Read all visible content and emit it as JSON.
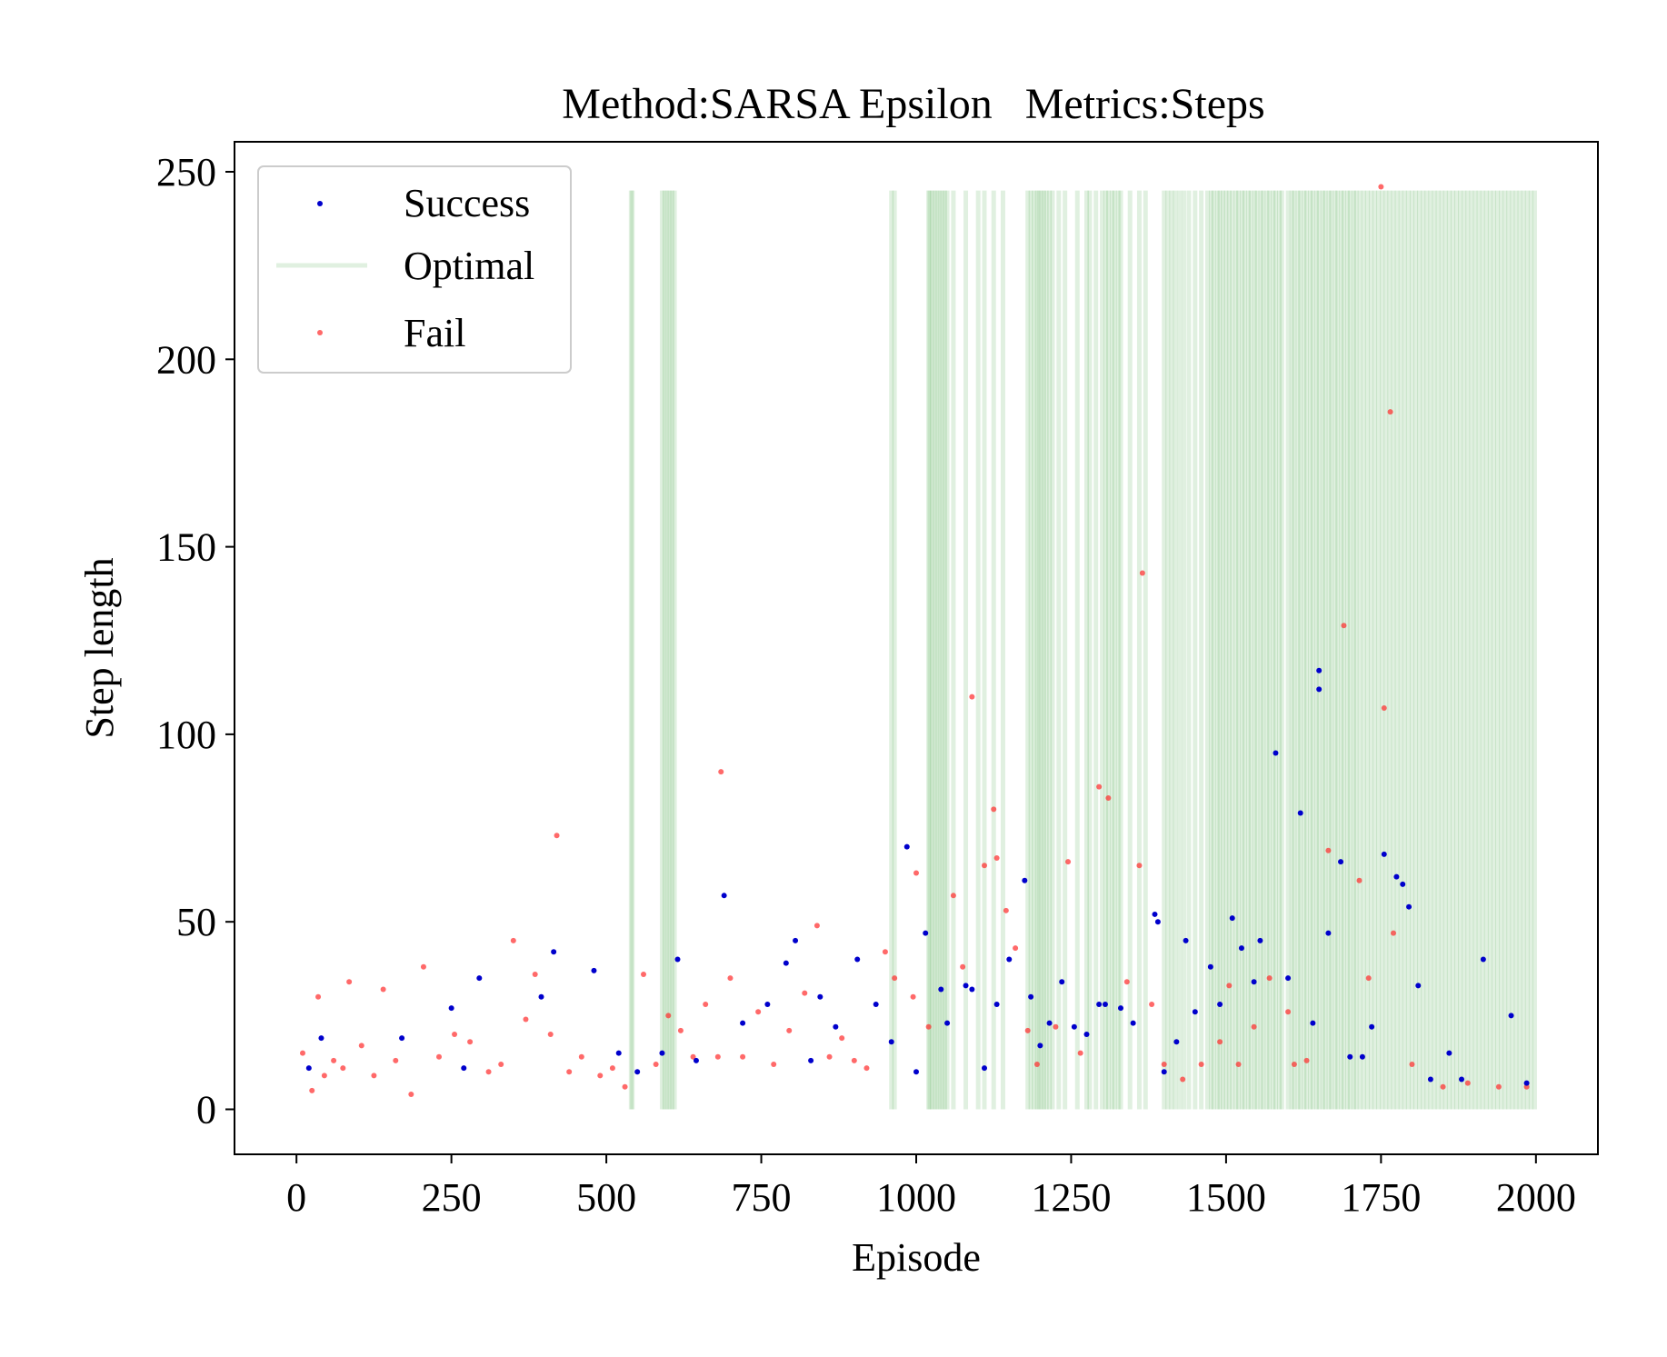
{
  "chart_data": {
    "type": "scatter",
    "title": "Method:SARSA Epsilon   Metrics:Steps",
    "xlabel": "Episode",
    "ylabel": "Step length",
    "xlim": [
      -100,
      2100
    ],
    "ylim": [
      -12,
      258
    ],
    "x_ticks": [
      0,
      250,
      500,
      750,
      1000,
      1250,
      1500,
      1750,
      2000
    ],
    "y_ticks": [
      0,
      50,
      100,
      150,
      200,
      250
    ],
    "x_tick_labels": [
      "0",
      "250",
      "500",
      "750",
      "1000",
      "1250",
      "1500",
      "1750",
      "2000"
    ],
    "y_tick_labels": [
      "0",
      "50",
      "100",
      "150",
      "200",
      "250"
    ],
    "grid": false,
    "legend_position": "top-left",
    "legend": [
      {
        "label": "Success",
        "marker": "dot",
        "color": "#0000cc"
      },
      {
        "label": "Optimal",
        "marker": "line",
        "color": "#2e9a2e"
      },
      {
        "label": "Fail",
        "marker": "dot",
        "color": "#ff2a2a"
      }
    ],
    "colors": {
      "success": "#0000cc",
      "fail": "#ff2a2a",
      "optimal": "#2e9a2e"
    },
    "optimal_line_top": 245,
    "series": [
      {
        "name": "Success",
        "points": [
          [
            20,
            11
          ],
          [
            40,
            19
          ],
          [
            170,
            19
          ],
          [
            250,
            27
          ],
          [
            270,
            11
          ],
          [
            295,
            35
          ],
          [
            395,
            30
          ],
          [
            415,
            42
          ],
          [
            480,
            37
          ],
          [
            520,
            15
          ],
          [
            550,
            10
          ],
          [
            590,
            15
          ],
          [
            615,
            40
          ],
          [
            645,
            13
          ],
          [
            690,
            57
          ],
          [
            720,
            23
          ],
          [
            760,
            28
          ],
          [
            790,
            39
          ],
          [
            805,
            45
          ],
          [
            830,
            13
          ],
          [
            845,
            30
          ],
          [
            870,
            22
          ],
          [
            905,
            40
          ],
          [
            935,
            28
          ],
          [
            960,
            18
          ],
          [
            985,
            70
          ],
          [
            1000,
            10
          ],
          [
            1015,
            47
          ],
          [
            1040,
            32
          ],
          [
            1050,
            23
          ],
          [
            1080,
            33
          ],
          [
            1090,
            32
          ],
          [
            1110,
            11
          ],
          [
            1130,
            28
          ],
          [
            1150,
            40
          ],
          [
            1175,
            61
          ],
          [
            1185,
            30
          ],
          [
            1200,
            17
          ],
          [
            1215,
            23
          ],
          [
            1235,
            34
          ],
          [
            1255,
            22
          ],
          [
            1275,
            20
          ],
          [
            1295,
            28
          ],
          [
            1305,
            28
          ],
          [
            1330,
            27
          ],
          [
            1350,
            23
          ],
          [
            1385,
            52
          ],
          [
            1390,
            50
          ],
          [
            1400,
            10
          ],
          [
            1420,
            18
          ],
          [
            1435,
            45
          ],
          [
            1450,
            26
          ],
          [
            1475,
            38
          ],
          [
            1490,
            28
          ],
          [
            1510,
            51
          ],
          [
            1525,
            43
          ],
          [
            1545,
            34
          ],
          [
            1555,
            45
          ],
          [
            1580,
            95
          ],
          [
            1600,
            35
          ],
          [
            1620,
            79
          ],
          [
            1640,
            23
          ],
          [
            1650,
            117
          ],
          [
            1650,
            112
          ],
          [
            1665,
            47
          ],
          [
            1685,
            66
          ],
          [
            1700,
            14
          ],
          [
            1720,
            14
          ],
          [
            1735,
            22
          ],
          [
            1755,
            68
          ],
          [
            1775,
            62
          ],
          [
            1785,
            60
          ],
          [
            1795,
            54
          ],
          [
            1810,
            33
          ],
          [
            1830,
            8
          ],
          [
            1860,
            15
          ],
          [
            1880,
            8
          ],
          [
            1915,
            40
          ],
          [
            1960,
            25
          ],
          [
            1985,
            7
          ]
        ]
      },
      {
        "name": "Fail",
        "points": [
          [
            10,
            15
          ],
          [
            25,
            5
          ],
          [
            35,
            30
          ],
          [
            45,
            9
          ],
          [
            60,
            13
          ],
          [
            75,
            11
          ],
          [
            85,
            34
          ],
          [
            105,
            17
          ],
          [
            125,
            9
          ],
          [
            140,
            32
          ],
          [
            160,
            13
          ],
          [
            185,
            4
          ],
          [
            205,
            38
          ],
          [
            230,
            14
          ],
          [
            255,
            20
          ],
          [
            280,
            18
          ],
          [
            310,
            10
          ],
          [
            330,
            12
          ],
          [
            350,
            45
          ],
          [
            370,
            24
          ],
          [
            385,
            36
          ],
          [
            410,
            20
          ],
          [
            420,
            73
          ],
          [
            440,
            10
          ],
          [
            460,
            14
          ],
          [
            490,
            9
          ],
          [
            510,
            11
          ],
          [
            530,
            6
          ],
          [
            560,
            36
          ],
          [
            580,
            12
          ],
          [
            600,
            25
          ],
          [
            620,
            21
          ],
          [
            640,
            14
          ],
          [
            660,
            28
          ],
          [
            680,
            14
          ],
          [
            685,
            90
          ],
          [
            700,
            35
          ],
          [
            720,
            14
          ],
          [
            745,
            26
          ],
          [
            770,
            12
          ],
          [
            795,
            21
          ],
          [
            820,
            31
          ],
          [
            840,
            49
          ],
          [
            860,
            14
          ],
          [
            880,
            19
          ],
          [
            900,
            13
          ],
          [
            920,
            11
          ],
          [
            950,
            42
          ],
          [
            965,
            35
          ],
          [
            995,
            30
          ],
          [
            1000,
            63
          ],
          [
            1020,
            22
          ],
          [
            1060,
            57
          ],
          [
            1075,
            38
          ],
          [
            1090,
            110
          ],
          [
            1110,
            65
          ],
          [
            1125,
            80
          ],
          [
            1130,
            67
          ],
          [
            1145,
            53
          ],
          [
            1160,
            43
          ],
          [
            1180,
            21
          ],
          [
            1195,
            12
          ],
          [
            1225,
            22
          ],
          [
            1245,
            66
          ],
          [
            1265,
            15
          ],
          [
            1295,
            86
          ],
          [
            1310,
            83
          ],
          [
            1340,
            34
          ],
          [
            1360,
            65
          ],
          [
            1365,
            143
          ],
          [
            1380,
            28
          ],
          [
            1400,
            12
          ],
          [
            1430,
            8
          ],
          [
            1460,
            12
          ],
          [
            1490,
            18
          ],
          [
            1505,
            33
          ],
          [
            1520,
            12
          ],
          [
            1545,
            22
          ],
          [
            1570,
            35
          ],
          [
            1600,
            26
          ],
          [
            1610,
            12
          ],
          [
            1630,
            13
          ],
          [
            1665,
            69
          ],
          [
            1690,
            129
          ],
          [
            1715,
            61
          ],
          [
            1730,
            35
          ],
          [
            1750,
            246
          ],
          [
            1755,
            107
          ],
          [
            1765,
            186
          ],
          [
            1770,
            47
          ],
          [
            1800,
            12
          ],
          [
            1850,
            6
          ],
          [
            1890,
            7
          ],
          [
            1940,
            6
          ],
          [
            1985,
            6
          ]
        ]
      }
    ],
    "optimal_episodes": [
      540,
      542,
      590,
      594,
      598,
      602,
      606,
      610,
      960,
      965,
      1020,
      1022,
      1026,
      1030,
      1034,
      1038,
      1042,
      1046,
      1050,
      1060,
      1080,
      1100,
      1110,
      1125,
      1140,
      1180,
      1185,
      1190,
      1195,
      1198,
      1202,
      1206,
      1210,
      1215,
      1220,
      1230,
      1240,
      1260,
      1275,
      1280,
      1290,
      1300,
      1306,
      1310,
      1316,
      1320,
      1326,
      1330,
      1345,
      1360,
      1370,
      1400,
      1406,
      1412,
      1418,
      1425,
      1432,
      1440,
      1450,
      1460,
      1470,
      1476,
      1480,
      1486,
      1490,
      1495,
      1500,
      1505,
      1510,
      1516,
      1520,
      1526,
      1530,
      1536,
      1540,
      1546,
      1550,
      1556,
      1560,
      1566,
      1570,
      1576,
      1580,
      1586,
      1590,
      1600,
      1606,
      1610,
      1616,
      1620,
      1626,
      1630,
      1636,
      1640,
      1646,
      1650,
      1656,
      1660,
      1666,
      1670,
      1676,
      1680,
      1686,
      1690,
      1696,
      1700,
      1706,
      1710,
      1716,
      1722,
      1728,
      1734,
      1740,
      1746,
      1752,
      1758,
      1764,
      1770,
      1776,
      1782,
      1788,
      1794,
      1800,
      1806,
      1812,
      1818,
      1824,
      1830,
      1836,
      1842,
      1848,
      1854,
      1860,
      1866,
      1872,
      1878,
      1884,
      1890,
      1896,
      1902,
      1908,
      1914,
      1920,
      1926,
      1932,
      1938,
      1944,
      1950,
      1956,
      1962,
      1968,
      1974,
      1980,
      1986,
      1992,
      1998
    ]
  }
}
